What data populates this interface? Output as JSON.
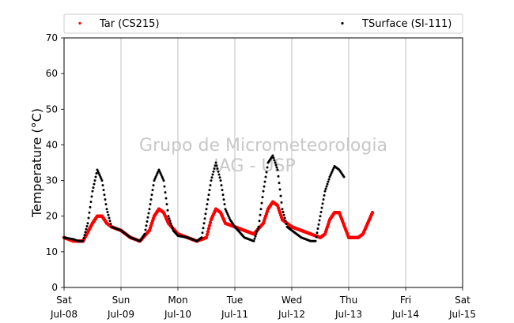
{
  "chart_data": {
    "type": "scatter",
    "ylabel": "Temperature (°C)",
    "xlabel": "",
    "ylim": [
      0,
      70
    ],
    "y_ticks": [
      0,
      10,
      20,
      30,
      40,
      50,
      60,
      70
    ],
    "x_range_days": [
      "Sat Jul-08",
      "Sat Jul-15"
    ],
    "x_ticks": [
      {
        "top": "Sat",
        "bottom": "Jul-08"
      },
      {
        "top": "Sun",
        "bottom": "Jul-09"
      },
      {
        "top": "Mon",
        "bottom": "Jul-10"
      },
      {
        "top": "Tue",
        "bottom": "Jul-11"
      },
      {
        "top": "Wed",
        "bottom": "Jul-12"
      },
      {
        "top": "Thu",
        "bottom": "Jul-13"
      },
      {
        "top": "Fri",
        "bottom": "Jul-14"
      },
      {
        "top": "Sat",
        "bottom": "Jul-15"
      }
    ],
    "grid": "vertical",
    "legend_position": "top",
    "watermark": [
      "Grupo de Micrometeorologia",
      "IAG - USP"
    ],
    "series": [
      {
        "name": "Tar (CS215)",
        "color": "#ff0000",
        "x_hours": [
          0,
          4,
          8,
          12,
          14,
          16,
          18,
          20,
          24,
          28,
          32,
          36,
          38,
          40,
          42,
          44,
          48,
          52,
          56,
          60,
          62,
          64,
          66,
          68,
          72,
          76,
          80,
          84,
          86,
          88,
          90,
          92,
          96,
          100,
          104,
          108,
          110,
          112,
          114,
          116,
          120,
          124,
          126,
          128,
          130
        ],
        "values": [
          14,
          13,
          13,
          18,
          20,
          20,
          18,
          17,
          16,
          14,
          13,
          16,
          20,
          22,
          21,
          18,
          15,
          14,
          13,
          14,
          19,
          22,
          21,
          18,
          17,
          16,
          15,
          18,
          22,
          24,
          23,
          19,
          17,
          16,
          15,
          14,
          15,
          19,
          21,
          21,
          14,
          14,
          15,
          18,
          21
        ]
      },
      {
        "name": "TSurface (SI-111)",
        "color": "#000000",
        "x_hours": [
          0,
          4,
          6,
          8,
          10,
          12,
          14,
          16,
          18,
          20,
          24,
          28,
          32,
          34,
          36,
          38,
          40,
          42,
          44,
          46,
          48,
          52,
          56,
          58,
          60,
          62,
          64,
          66,
          68,
          70,
          72,
          76,
          80,
          82,
          84,
          86,
          88,
          90,
          92,
          94,
          96,
          100,
          104,
          106,
          108,
          110,
          112,
          114,
          116,
          118
        ],
        "values": [
          14,
          13.5,
          13,
          13,
          18,
          27,
          33,
          30,
          22,
          17,
          16,
          14,
          13,
          15,
          22,
          30,
          33,
          30,
          20,
          16,
          14.5,
          14,
          13,
          14,
          22,
          30,
          35,
          30,
          22,
          19,
          17,
          14,
          13,
          17,
          27,
          35,
          37,
          33,
          22,
          17,
          16,
          14,
          13,
          13,
          20,
          27,
          31,
          34,
          33,
          31
        ]
      }
    ]
  }
}
